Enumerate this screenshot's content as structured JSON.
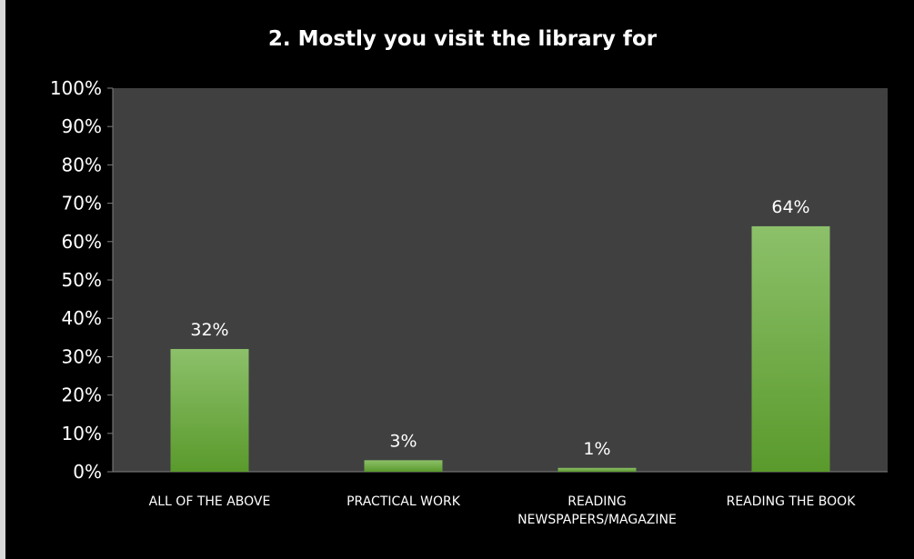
{
  "chart_data": {
    "type": "bar",
    "title": "2. Mostly you visit the library for",
    "categories": [
      [
        "ALL OF THE ABOVE"
      ],
      [
        "PRACTICAL WORK"
      ],
      [
        "READING",
        "NEWSPAPERS/MAGAZINE"
      ],
      [
        "READING THE BOOK"
      ]
    ],
    "values": [
      32,
      3,
      1,
      64
    ],
    "value_labels": [
      "32%",
      "3%",
      "1%",
      "64%"
    ],
    "y_ticks": [
      "0%",
      "10%",
      "20%",
      "30%",
      "40%",
      "50%",
      "60%",
      "70%",
      "80%",
      "90%",
      "100%"
    ],
    "ylim": [
      0,
      100
    ],
    "xlabel": "",
    "ylabel": "",
    "grid": false,
    "legend": "none",
    "colors": {
      "bar_top": "#8cc06a",
      "bar_bottom": "#5a9a2c",
      "plot_background": "#404040",
      "page_background": "#000000",
      "text": "#ffffff",
      "axis": "#7f7f7f"
    }
  }
}
